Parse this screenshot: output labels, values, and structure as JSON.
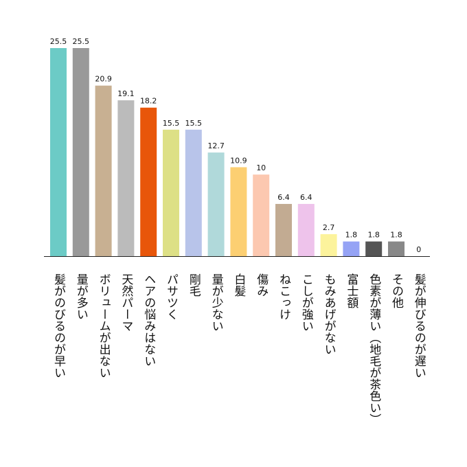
{
  "chart_data": {
    "type": "bar",
    "categories": [
      "髪がのびるのが早い",
      "量が多い",
      "ボリュームが出ない",
      "天然パーマ",
      "ヘアの悩みはない",
      "パサツく",
      "剛毛",
      "量が少ない",
      "白髪",
      "傷み",
      "ねこっけ",
      "こしが強い",
      "もみあげがない",
      "富士額",
      "色素が薄い（地毛が茶色い）",
      "その他",
      "髪が伸びるのが遅い"
    ],
    "values": [
      25.5,
      25.5,
      20.9,
      19.1,
      18.2,
      15.5,
      15.5,
      12.7,
      10.9,
      10,
      6.4,
      6.4,
      2.7,
      1.8,
      1.8,
      1.8,
      0
    ],
    "colors": [
      "#6ccbc6",
      "#999999",
      "#c8b092",
      "#bbbbbb",
      "#e8560a",
      "#dde086",
      "#b8c4ea",
      "#b0d9da",
      "#fccf72",
      "#fcc8b0",
      "#c2ab92",
      "#eec3eb",
      "#fcf39c",
      "#95a3f5",
      "#555555",
      "#888888",
      "#888888"
    ]
  }
}
